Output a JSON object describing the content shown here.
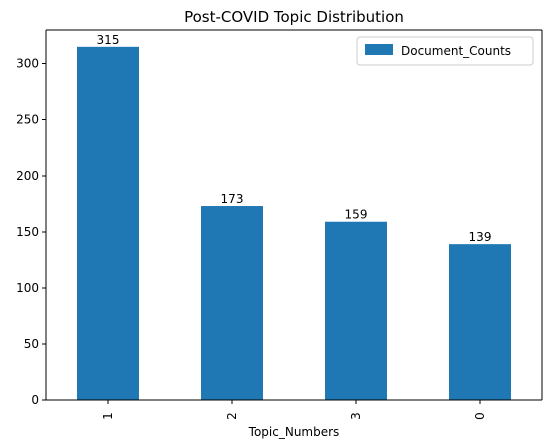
{
  "chart_data": {
    "type": "bar",
    "title": "Post-COVID Topic Distribution",
    "xlabel": "Topic_Numbers",
    "ylabel": "",
    "categories": [
      "1",
      "2",
      "3",
      "0"
    ],
    "series": [
      {
        "name": "Document_Counts",
        "values": [
          315,
          173,
          159,
          139
        ],
        "color": "#1f77b4"
      }
    ],
    "data_labels": [
      "315",
      "173",
      "159",
      "139"
    ],
    "ylim": [
      0,
      330
    ],
    "yticks": [
      0,
      50,
      100,
      150,
      200,
      250,
      300
    ],
    "legend_position": "top-right",
    "grid": false
  }
}
